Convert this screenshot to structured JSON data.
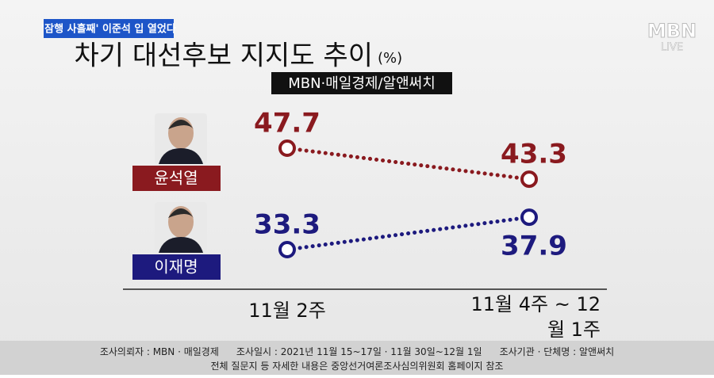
{
  "header_tag": "'잠행 사흘째' 이준석 입 열었다",
  "logo": {
    "main": "MBN",
    "sub": "LIVE"
  },
  "chart_data": {
    "type": "line",
    "title": "차기 대선후보 지지도 추이",
    "unit": "(%)",
    "subtitle": "MBN·매일경제/알앤써치",
    "categories": [
      "11월 2주",
      "11월 4주 ~ 12월 1주"
    ],
    "series": [
      {
        "name": "윤석열",
        "color": "#8a1a1f",
        "values": [
          47.7,
          43.3
        ]
      },
      {
        "name": "이재명",
        "color": "#1d1a7e",
        "values": [
          33.3,
          37.9
        ]
      }
    ]
  },
  "footer": {
    "lines": [
      [
        "조사의뢰자 : MBN · 매일경제",
        "조사일시 : 2021년 11월 15~17일 · 11월 30일~12월 1일",
        "조사기관 · 단체명 : 알앤써치"
      ],
      [
        "전체 질문지 등 자세한 내용은 중앙선거여론조사심의위원회 홈페이지 참조"
      ]
    ]
  }
}
